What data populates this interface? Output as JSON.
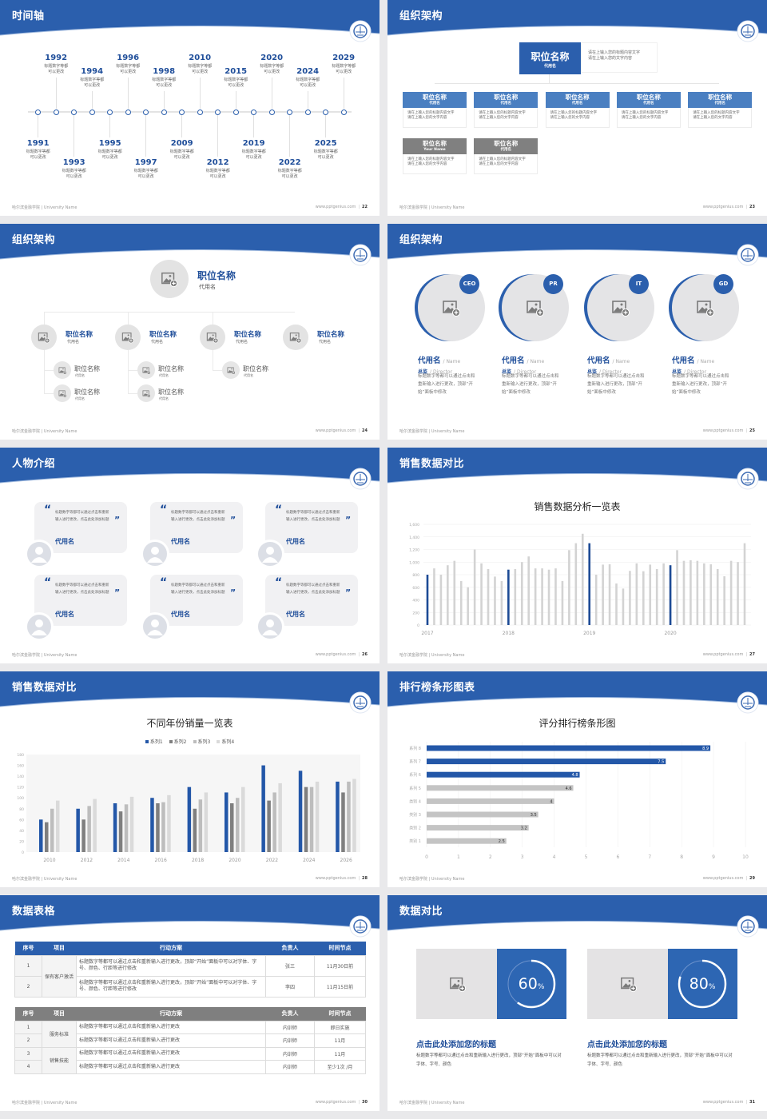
{
  "footer": {
    "left": "哈尔滨金融学院 | University Name",
    "url": "www.pptgenius.com"
  },
  "colors": {
    "brand_blue": "#2b5fad",
    "dark_blue": "#1f4e9a",
    "light_blue": "#4a7fc1",
    "gray_bar": "#d2d2d2",
    "dark_gray": "#7f7f7f",
    "background": "#e9e9eb"
  },
  "slides": {
    "timeline": {
      "title": "时间轴",
      "page": "22",
      "events": [
        {
          "year": "1991",
          "desc": "标题数字等都可以更改"
        },
        {
          "year": "1992",
          "desc": "标题数字等都可以更改"
        },
        {
          "year": "1993",
          "desc": "标题数字等都可以更改"
        },
        {
          "year": "1994",
          "desc": "标题数字等都可以更改"
        },
        {
          "year": "1995",
          "desc": "标题数字等都可以更改"
        },
        {
          "year": "1996",
          "desc": "标题数字等都可以更改"
        },
        {
          "year": "1997",
          "desc": "标题数字等都可以更改"
        },
        {
          "year": "1998",
          "desc": "标题数字等都可以更改"
        },
        {
          "year": "2009",
          "desc": "标题数字等都可以更改"
        },
        {
          "year": "2010",
          "desc": "标题数字等都可以更改"
        },
        {
          "year": "2012",
          "desc": "标题数字等都可以更改"
        },
        {
          "year": "2015",
          "desc": "标题数字等都可以更改"
        },
        {
          "year": "2019",
          "desc": "标题数字等都可以更改"
        },
        {
          "year": "2020",
          "desc": "标题数字等都可以更改"
        },
        {
          "year": "2022",
          "desc": "标题数字等都可以更改"
        },
        {
          "year": "2024",
          "desc": "标题数字等都可以更改"
        },
        {
          "year": "2025",
          "desc": "标题数字等都可以更改"
        },
        {
          "year": "2029",
          "desc": "标题数字等都可以更改"
        }
      ]
    },
    "org_boxes": {
      "title": "组织架构",
      "page": "23",
      "top": {
        "title": "职位名称",
        "sub": "代用名",
        "desc": [
          "请在上输入您的标题内容文字",
          "请在上输入您的文字内容"
        ]
      },
      "row1": [
        {
          "title": "职位名称",
          "sub": "代用名",
          "desc": [
            "请在上输入您的标题内容文字",
            "请在上输入您的文字内容"
          ]
        },
        {
          "title": "职位名称",
          "sub": "代用名",
          "desc": [
            "请在上输入您的标题内容文字",
            "请在上输入您的文字内容"
          ]
        },
        {
          "title": "职位名称",
          "sub": "代用名",
          "desc": [
            "请在上输入您的标题内容文字",
            "请在上输入您的文字内容"
          ]
        },
        {
          "title": "职位名称",
          "sub": "代用名",
          "desc": [
            "请在上输入您的标题内容文字",
            "请在上输入您的文字内容"
          ]
        },
        {
          "title": "职位名称",
          "sub": "代用名",
          "desc": [
            "请在上输入您的标题内容文字",
            "请在上输入您的文字内容"
          ]
        }
      ],
      "row2": [
        {
          "title": "职位名称",
          "sub": "Your Name",
          "desc": [
            "请在上输入您的标题内容文字",
            "请在上输入您的文字内容"
          ]
        },
        {
          "title": "职位名称",
          "sub": "代用名",
          "desc": [
            "请在上输入您的标题内容文字",
            "请在上输入您的文字内容"
          ]
        }
      ]
    },
    "org_circles": {
      "title": "组织架构",
      "page": "24",
      "top": {
        "title": "职位名称",
        "sub": "代用名"
      },
      "level2": [
        {
          "title": "职位名称",
          "sub": "代用名",
          "children": [
            {
              "title": "职位名称",
              "sub": "代用名"
            },
            {
              "title": "职位名称",
              "sub": "代用名"
            }
          ]
        },
        {
          "title": "职位名称",
          "sub": "代用名",
          "children": [
            {
              "title": "职位名称",
              "sub": "代用名"
            },
            {
              "title": "职位名称",
              "sub": "代用名"
            }
          ]
        },
        {
          "title": "职位名称",
          "sub": "代用名",
          "children": [
            {
              "title": "职位名称",
              "sub": "代用名"
            }
          ]
        },
        {
          "title": "职位名称",
          "sub": "代用名",
          "children": []
        }
      ]
    },
    "team": {
      "title": "组织架构",
      "page": "25",
      "members": [
        {
          "badge": "CEO",
          "name": "代用名",
          "name_en": "/ Name",
          "role": "总监",
          "role_en": "/ Director",
          "desc": "标题数字等都可以通过点击和重新输入进行更改，顶部“开始”面板中修改"
        },
        {
          "badge": "PR",
          "name": "代用名",
          "name_en": "/ Name",
          "role": "总监",
          "role_en": "/ Director",
          "desc": "标题数字等都可以通过点击和重新输入进行更改，顶部“开始”面板中修改"
        },
        {
          "badge": "IT",
          "name": "代用名",
          "name_en": "/ Name",
          "role": "总监",
          "role_en": "/ Director",
          "desc": "标题数字等都可以通过点击和重新输入进行更改，顶部“开始”面板中修改"
        },
        {
          "badge": "GD",
          "name": "代用名",
          "name_en": "/ Name",
          "role": "总监",
          "role_en": "/ Director",
          "desc": "标题数字等都可以通过点击和重新输入进行更改，顶部“开始”面板中修改"
        }
      ]
    },
    "people": {
      "title": "人物介绍",
      "page": "26",
      "cards": [
        {
          "quote": "标题数字等都可以通过点击和重新输入进行更改，点击此处添加标题",
          "name": "代用名"
        },
        {
          "quote": "标题数字等都可以通过点击和重新输入进行更改，点击此处添加标题",
          "name": "代用名"
        },
        {
          "quote": "标题数字等都可以通过点击和重新输入进行更改，点击此处添加标题",
          "name": "代用名"
        },
        {
          "quote": "标题数字等都可以通过点击和重新输入进行更改，点击此处添加标题",
          "name": "代用名"
        },
        {
          "quote": "标题数字等都可以通过点击和重新输入进行更改，点击此处添加标题",
          "name": "代用名"
        },
        {
          "quote": "标题数字等都可以通过点击和重新输入进行更改，点击此处添加标题",
          "name": "代用名"
        }
      ]
    },
    "sales1": {
      "title": "销售数据对比",
      "page": "27"
    },
    "sales2": {
      "title": "销售数据对比",
      "page": "28"
    },
    "ranking": {
      "title": "排行榜条形图表",
      "page": "29"
    },
    "table": {
      "title": "数据表格",
      "page": "30",
      "headers": [
        "序号",
        "项目",
        "行动方案",
        "负责人",
        "时间节点"
      ],
      "table1": {
        "groups": [
          {
            "project": "保有客户激活",
            "rows": [
              {
                "no": "1",
                "plan": "标题数字等都可以通过点击和重新输入进行更改，顶部“开始”面板中可以对字体、字号、颜色、行距等进行修改",
                "owner": "张三",
                "deadline": "11月30日前"
              },
              {
                "no": "2",
                "plan": "标题数字等都可以通过点击和重新输入进行更改，顶部“开始”面板中可以对字体、字号、颜色、行距等进行修改",
                "owner": "李四",
                "deadline": "11月15日前"
              }
            ]
          }
        ]
      },
      "table2": {
        "groups": [
          {
            "project": "服务标准",
            "rows": [
              {
                "no": "1",
                "plan": "标题数字等都可以通过点击和重新输入进行更改",
                "owner": "内训师",
                "deadline": "即日实施"
              },
              {
                "no": "2",
                "plan": "标题数字等都可以通过点击和重新输入进行更改",
                "owner": "内训师",
                "deadline": "11月"
              }
            ]
          },
          {
            "project": "销售技能",
            "rows": [
              {
                "no": "3",
                "plan": "标题数字等都可以通过点击和重新输入进行更改",
                "owner": "内训师",
                "deadline": "11月"
              },
              {
                "no": "4",
                "plan": "标题数字等都可以通过点击和重新输入进行更改",
                "owner": "内训师",
                "deadline": "至少1次 /月"
              }
            ]
          }
        ]
      }
    },
    "compare": {
      "title": "数据对比",
      "page": "31",
      "items": [
        {
          "percent": 60,
          "value": "60",
          "unit": "%",
          "heading": "点击此处添加您的标题",
          "desc": "标题数字等都可以通过点击和重新输入进行更改，顶部“开始”面板中可以对字体、字号、颜色"
        },
        {
          "percent": 80,
          "value": "80",
          "unit": "%",
          "heading": "点击此处添加您的标题",
          "desc": "标题数字等都可以通过点击和重新输入进行更改，顶部“开始”面板中可以对字体、字号、颜色"
        }
      ]
    }
  },
  "chart_data": [
    {
      "type": "bar",
      "title": "销售数据分析一览表",
      "x_labels": [
        "2017",
        "2018",
        "2019",
        "2020"
      ],
      "ylim": [
        0,
        1600
      ],
      "yticks": [
        "0",
        "200",
        "400",
        "600",
        "800",
        "1,000",
        "1,200",
        "1,400",
        "1,600"
      ],
      "values": [
        800,
        900,
        800,
        950,
        1020,
        700,
        600,
        1200,
        980,
        890,
        770,
        700,
        880,
        890,
        1000,
        1090,
        900,
        900,
        880,
        900,
        700,
        1190,
        1300,
        1450,
        1300,
        800,
        960,
        965,
        660,
        580,
        860,
        980,
        855,
        960,
        890,
        980,
        950,
        1190,
        1020,
        1030,
        1020,
        980,
        965,
        890,
        775,
        1020,
        1000,
        1300
      ],
      "highlight_indices": [
        0,
        12,
        24,
        36
      ],
      "grid": true
    },
    {
      "type": "bar",
      "title": "不同年份销量一览表",
      "categories": [
        "2010",
        "2012",
        "2014",
        "2016",
        "2018",
        "2020",
        "2022",
        "2024",
        "2026"
      ],
      "ylim": [
        0,
        180
      ],
      "yticks": [
        "0",
        "20",
        "40",
        "60",
        "80",
        "100",
        "120",
        "140",
        "160",
        "180"
      ],
      "legend": "top",
      "series": [
        {
          "name": "系列1",
          "color": "#2357a8",
          "values": [
            60,
            80,
            90,
            100,
            120,
            110,
            160,
            150,
            130
          ]
        },
        {
          "name": "系列2",
          "color": "#7f7f7f",
          "values": [
            55,
            60,
            75,
            90,
            80,
            90,
            95,
            120,
            110
          ]
        },
        {
          "name": "系列3",
          "color": "#bdbdbd",
          "values": [
            80,
            85,
            88,
            92,
            97,
            100,
            110,
            120,
            130
          ]
        },
        {
          "name": "系列4",
          "color": "#dadada",
          "values": [
            95,
            98,
            102,
            105,
            110,
            120,
            127,
            130,
            135
          ]
        }
      ]
    },
    {
      "type": "bar",
      "orientation": "horizontal",
      "title": "评分排行榜条形图",
      "categories": [
        "系列 8",
        "系列 7",
        "系列 6",
        "系列 5",
        "类别 4",
        "类别 3",
        "类别 2",
        "类别 1"
      ],
      "values": [
        8.9,
        7.5,
        4.8,
        4.6,
        4,
        3.5,
        3.2,
        2.5
      ],
      "value_labels": [
        "8.9",
        "7.5",
        "4.8",
        "4.6",
        "4",
        "3.5",
        "3.2",
        "2.5"
      ],
      "highlight_indices": [
        0,
        1,
        2
      ],
      "xlim": [
        0,
        10
      ],
      "xticks": [
        "0",
        "1",
        "2",
        "3",
        "4",
        "5",
        "6",
        "7",
        "8",
        "9",
        "10"
      ]
    }
  ]
}
